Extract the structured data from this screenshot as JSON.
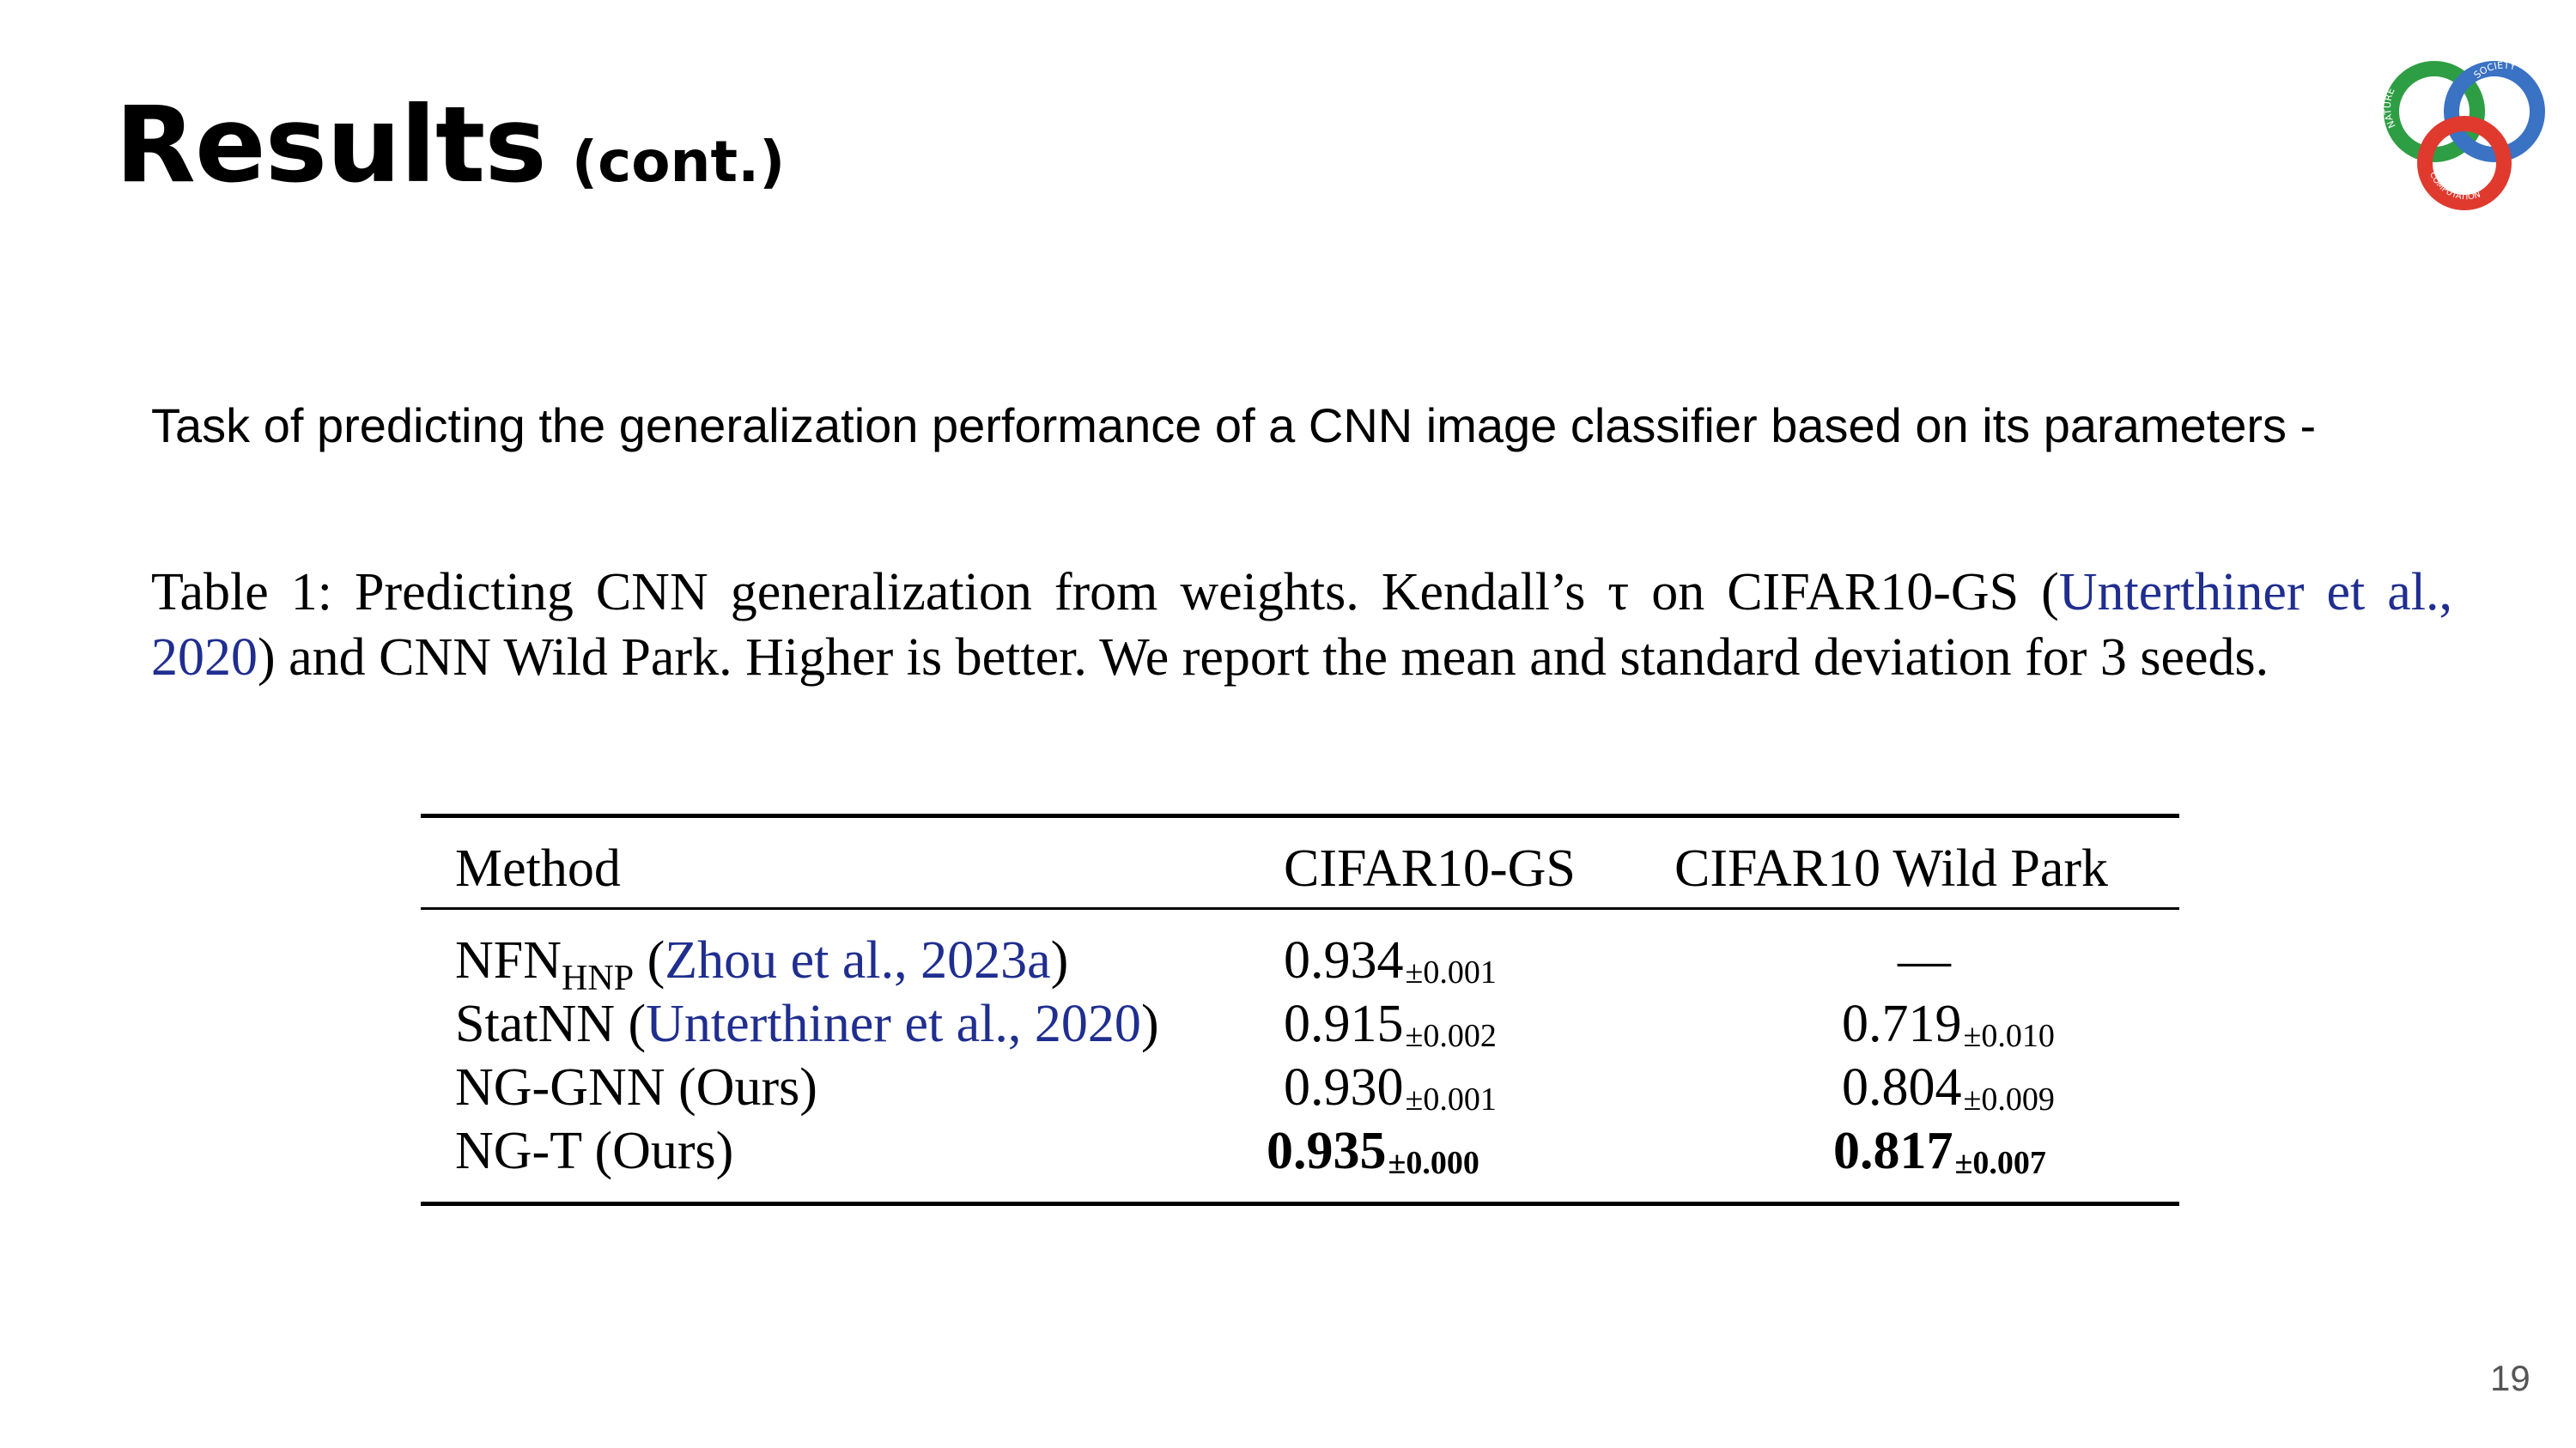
{
  "title": {
    "main": "Results",
    "sub": "(cont.)"
  },
  "logo": {
    "labels": [
      "NATURE",
      "SOCIETY",
      "COMPUTATION"
    ],
    "colors": {
      "green": "#2e9e44",
      "blue": "#3a72c4",
      "red": "#e03a2f"
    }
  },
  "subtitle": "Task of predicting the generalization performance of a CNN image classifier based on its parameters -",
  "caption": {
    "part1": "Table 1: Predicting CNN generalization from weights. Kendall’s τ on CIFAR10-GS (",
    "link1": "Unterthiner et al., 2020",
    "part2": ") and CNN Wild Park. Higher is better. We report the mean and standard deviation for 3 seeds."
  },
  "table": {
    "headers": [
      "Method",
      "CIFAR10-GS",
      "CIFAR10 Wild Park"
    ],
    "rows": [
      {
        "method": "NFN",
        "method_sub": "HNP",
        "cite_open": " (",
        "cite": "Zhou et al., 2023a",
        "cite_close": ")",
        "gs": "0.934",
        "gs_std": "±0.001",
        "wp": "—",
        "wp_std": ""
      },
      {
        "method": "StatNN",
        "method_sub": "",
        "cite_open": " (",
        "cite": "Unterthiner et al., 2020",
        "cite_close": ")",
        "gs": "0.915",
        "gs_std": "±0.002",
        "wp": "0.719",
        "wp_std": "±0.010"
      },
      {
        "method": "NG-GNN (Ours)",
        "method_sub": "",
        "cite_open": "",
        "cite": "",
        "cite_close": "",
        "gs": "0.930",
        "gs_std": "±0.001",
        "wp": "0.804",
        "wp_std": "±0.009"
      },
      {
        "method": "NG-T (Ours)",
        "method_sub": "",
        "cite_open": "",
        "cite": "",
        "cite_close": "",
        "gs": "0.935",
        "gs_std": "±0.000",
        "wp": "0.817",
        "wp_std": "±0.007"
      }
    ]
  },
  "page_number": "19"
}
